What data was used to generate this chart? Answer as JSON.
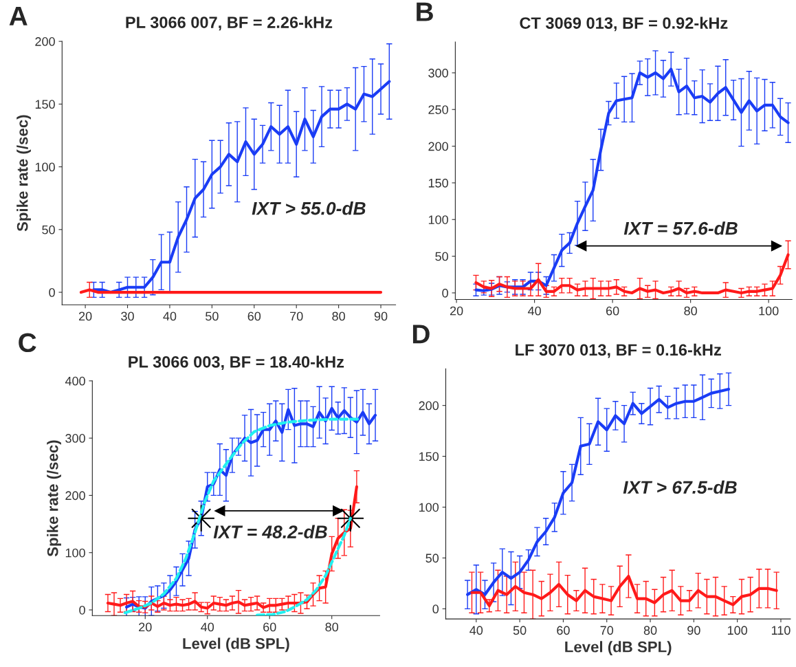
{
  "chart_data": [
    {
      "type": "line",
      "title": "PL 3066 007, BF = 2.26-kHz",
      "ylabel": "Spike rate (/sec)",
      "xlim": [
        14.5,
        93.5
      ],
      "ylim": [
        -10,
        200
      ],
      "xticks": [
        20,
        30,
        40,
        50,
        60,
        70,
        80,
        90
      ],
      "yticks": [
        0,
        50,
        100,
        150,
        200
      ],
      "annotations": [
        "A",
        "IXT > 55.0-dB"
      ],
      "series": [
        {
          "color": "#1a3cf5",
          "x": [
            22,
            24,
            26,
            28,
            30,
            32,
            34,
            36,
            38,
            40,
            42,
            44,
            46,
            48,
            50,
            52,
            54,
            56,
            58,
            60,
            62,
            64,
            66,
            68,
            70,
            72,
            74,
            76,
            78,
            80,
            82,
            84,
            86,
            88,
            90,
            92
          ],
          "values": [
            2,
            2,
            0,
            2,
            4,
            4,
            4,
            12,
            24,
            24,
            44,
            58,
            75,
            82,
            94,
            100,
            110,
            104,
            120,
            110,
            118,
            132,
            126,
            132,
            118,
            138,
            124,
            140,
            146,
            146,
            150,
            146,
            158,
            156,
            162,
            168
          ],
          "errors": [
            6,
            6,
            null,
            6,
            8,
            8,
            8,
            14,
            22,
            24,
            28,
            26,
            31,
            22,
            27,
            21,
            25,
            32,
            27,
            28,
            15,
            19,
            23,
            29,
            26,
            25,
            21,
            24,
            15,
            15,
            13,
            33,
            22,
            30,
            20,
            30
          ]
        },
        {
          "color": "#ff1a1a",
          "x": [
            19,
            21,
            23,
            90
          ],
          "values": [
            0,
            2,
            0,
            0
          ],
          "errors": [
            null,
            6,
            null,
            null
          ]
        }
      ]
    },
    {
      "type": "line",
      "title": "CT 3069 013, BF = 0.92-kHz",
      "xlim": [
        19.7,
        106
      ],
      "ylim": [
        -9,
        342
      ],
      "xticks": [
        20,
        40,
        60,
        80,
        100
      ],
      "yticks": [
        0,
        50,
        100,
        150,
        200,
        250,
        300
      ],
      "annotations": [
        "B",
        "IXT = 57.6-dB"
      ],
      "series": [
        {
          "color": "#1a3cf5",
          "x": [
            25,
            27,
            29,
            31,
            33,
            35,
            37,
            39,
            41,
            43,
            45,
            47,
            49,
            51,
            53,
            55,
            57,
            59,
            61,
            63,
            65,
            67,
            69,
            71,
            73,
            75,
            77,
            79,
            81,
            83,
            85,
            87,
            89,
            91,
            93,
            95,
            97,
            99,
            101,
            103,
            105
          ],
          "values": [
            4,
            3,
            5,
            10,
            8,
            8,
            8,
            16,
            16,
            10,
            34,
            58,
            68,
            95,
            118,
            140,
            195,
            245,
            262,
            264,
            266,
            300,
            294,
            300,
            292,
            305,
            274,
            282,
            266,
            268,
            260,
            272,
            280,
            263,
            246,
            262,
            248,
            256,
            256,
            240,
            232
          ],
          "errors": [
            8,
            6,
            8,
            12,
            7,
            10,
            10,
            12,
            12,
            12,
            18,
            22,
            14,
            30,
            33,
            42,
            28,
            16,
            24,
            31,
            33,
            16,
            25,
            30,
            25,
            23,
            31,
            38,
            23,
            36,
            25,
            37,
            38,
            27,
            46,
            40,
            45,
            35,
            31,
            25,
            27
          ]
        },
        {
          "color": "#ff1a1a",
          "x": [
            25,
            27,
            29,
            31,
            33,
            35,
            37,
            39,
            41,
            43,
            45,
            47,
            49,
            51,
            53,
            55,
            57,
            59,
            61,
            63,
            65,
            67,
            69,
            71,
            73,
            75,
            77,
            79,
            81,
            83,
            85,
            87,
            89,
            91,
            93,
            95,
            97,
            99,
            101,
            103,
            105
          ],
          "values": [
            14,
            8,
            6,
            12,
            8,
            6,
            6,
            6,
            18,
            2,
            2,
            10,
            10,
            4,
            6,
            6,
            6,
            6,
            8,
            2,
            0,
            6,
            2,
            4,
            0,
            2,
            6,
            0,
            2,
            0,
            0,
            0,
            4,
            2,
            0,
            2,
            2,
            4,
            6,
            24,
            52
          ],
          "errors": [
            10,
            8,
            11,
            10,
            14,
            10,
            10,
            10,
            22,
            8,
            6,
            10,
            10,
            8,
            10,
            14,
            10,
            10,
            10,
            6,
            null,
            14,
            8,
            12,
            null,
            6,
            10,
            6,
            6,
            null,
            null,
            null,
            10,
            null,
            6,
            6,
            6,
            8,
            10,
            12,
            19
          ]
        },
        {
          "type": "line",
          "color": "#000000",
          "marker": "triangle",
          "x": [
            52,
            102
          ],
          "values": [
            64,
            64
          ]
        }
      ]
    },
    {
      "type": "line",
      "title": "PL 3066 003, BF = 18.40-kHz",
      "xlabel": "Level (dB SPL)",
      "ylabel": "Spike rate (/sec)",
      "xlim": [
        3,
        95.4
      ],
      "ylim": [
        -10,
        400
      ],
      "xticks": [
        20,
        40,
        60,
        80
      ],
      "yticks": [
        0,
        100,
        200,
        300,
        400
      ],
      "annotations": [
        "C",
        "IXT = 48.2-dB"
      ],
      "series": [
        {
          "color": "#1a3cf5",
          "x": [
            14,
            16,
            18,
            20,
            22,
            24,
            26,
            28,
            30,
            32,
            34,
            36,
            38,
            40,
            42,
            44,
            46,
            48,
            50,
            52,
            54,
            56,
            58,
            60,
            62,
            64,
            66,
            68,
            70,
            72,
            74,
            76,
            78,
            80,
            82,
            84,
            86,
            88,
            90,
            92,
            94
          ],
          "values": [
            5,
            10,
            5,
            3,
            15,
            20,
            25,
            35,
            50,
            70,
            90,
            140,
            160,
            215,
            220,
            245,
            235,
            270,
            285,
            300,
            292,
            296,
            315,
            315,
            330,
            310,
            350,
            322,
            325,
            325,
            320,
            345,
            330,
            352,
            335,
            348,
            336,
            328,
            345,
            325,
            340
          ],
          "errors": [
            16,
            12,
            18,
            20,
            25,
            22,
            22,
            25,
            25,
            28,
            30,
            32,
            30,
            25,
            20,
            45,
            45,
            30,
            15,
            40,
            58,
            45,
            30,
            45,
            35,
            50,
            35,
            65,
            40,
            40,
            35,
            45,
            40,
            38,
            28,
            40,
            35,
            55,
            40,
            35,
            45
          ]
        },
        {
          "color": "#ff1a1a",
          "x": [
            8,
            10,
            12,
            14,
            16,
            18,
            20,
            22,
            24,
            26,
            28,
            30,
            32,
            34,
            36,
            38,
            40,
            42,
            44,
            46,
            48,
            50,
            52,
            54,
            56,
            58,
            60,
            62,
            64,
            66,
            68,
            70,
            72,
            74,
            76,
            78,
            80,
            82,
            84,
            86,
            88
          ],
          "values": [
            12,
            10,
            8,
            12,
            15,
            6,
            5,
            12,
            6,
            12,
            8,
            10,
            8,
            10,
            15,
            5,
            3,
            12,
            10,
            8,
            12,
            14,
            8,
            10,
            12,
            4,
            8,
            8,
            10,
            12,
            12,
            12,
            14,
            27,
            38,
            40,
            98,
            125,
            135,
            142,
            215
          ],
          "errors": [
            15,
            20,
            12,
            15,
            18,
            10,
            10,
            12,
            10,
            12,
            10,
            12,
            10,
            10,
            15,
            8,
            10,
            12,
            12,
            10,
            12,
            20,
            10,
            12,
            12,
            8,
            12,
            12,
            10,
            12,
            15,
            18,
            12,
            20,
            22,
            28,
            30,
            35,
            40,
            32,
            28
          ]
        },
        {
          "color": "#22f0f0",
          "line_style": "dashed",
          "x": [
            13.5,
            18,
            22,
            26,
            30,
            33,
            36,
            39,
            42,
            47,
            51,
            55,
            60,
            66,
            72,
            80,
            89
          ],
          "values": [
            -5,
            3,
            12,
            28,
            55,
            89,
            135,
            187,
            225,
            262,
            290,
            311,
            322,
            328,
            331,
            333,
            333
          ]
        },
        {
          "color": "#22f0f0",
          "line_style": "dashed",
          "x": [
            56,
            61,
            65,
            68,
            72,
            75,
            78,
            81,
            84,
            86
          ],
          "values": [
            -9,
            -8,
            -3,
            5,
            18,
            35,
            60,
            95,
            130,
            160
          ]
        },
        {
          "type": "scatter",
          "color": "#000000",
          "marker": "star",
          "x": [
            38,
            86
          ],
          "values": [
            160,
            160
          ]
        },
        {
          "type": "line",
          "color": "#000000",
          "marker": "triangle",
          "x": [
            44,
            82
          ],
          "values": [
            173,
            173
          ]
        }
      ]
    },
    {
      "type": "line",
      "title": "LF 3070 013, BF = 0.16-kHz",
      "xlabel": "Level (dB SPL)",
      "xlim": [
        33,
        112.2
      ],
      "ylim": [
        -10,
        236
      ],
      "xticks": [
        40,
        50,
        60,
        70,
        80,
        90,
        100,
        110
      ],
      "yticks": [
        0,
        50,
        100,
        150,
        200
      ],
      "annotations": [
        "D",
        "IXT > 67.5-dB"
      ],
      "series": [
        {
          "color": "#1a3cf5",
          "x": [
            38,
            40,
            42,
            44,
            46,
            48,
            50,
            52,
            54,
            56,
            58,
            60,
            62,
            64,
            66,
            68,
            70,
            72,
            74,
            76,
            78,
            80,
            82,
            84,
            86,
            88,
            90,
            92,
            94,
            96,
            98
          ],
          "values": [
            14,
            19,
            14,
            26,
            36,
            30,
            36,
            48,
            66,
            76,
            90,
            114,
            124,
            160,
            162,
            184,
            176,
            190,
            182,
            202,
            192,
            199,
            206,
            198,
            202,
            204,
            204,
            208,
            212,
            214,
            216
          ],
          "errors": [
            14,
            24,
            14,
            19,
            23,
            26,
            16,
            10,
            14,
            13,
            14,
            21,
            18,
            28,
            20,
            23,
            21,
            14,
            18,
            11,
            10,
            18,
            13,
            11,
            15,
            16,
            16,
            22,
            14,
            17,
            16
          ]
        },
        {
          "color": "#ff1a1a",
          "x": [
            39,
            41,
            43,
            45,
            47,
            49,
            51,
            53,
            55,
            57,
            59,
            61,
            63,
            65,
            67,
            69,
            71,
            73,
            75,
            77,
            79,
            81,
            83,
            85,
            87,
            89,
            91,
            93,
            95,
            97,
            99,
            101,
            103,
            105,
            107,
            109
          ],
          "values": [
            16,
            16,
            3,
            18,
            14,
            22,
            16,
            14,
            10,
            16,
            24,
            14,
            8,
            18,
            12,
            10,
            8,
            22,
            32,
            10,
            10,
            6,
            14,
            18,
            8,
            8,
            18,
            12,
            12,
            8,
            4,
            12,
            14,
            20,
            20,
            18
          ],
          "errors": [
            20,
            20,
            6,
            20,
            18,
            24,
            20,
            24,
            17,
            18,
            22,
            19,
            10,
            22,
            17,
            14,
            14,
            20,
            21,
            14,
            17,
            13,
            17,
            20,
            14,
            10,
            17,
            17,
            19,
            14,
            8,
            17,
            17,
            19,
            19,
            18
          ]
        }
      ]
    }
  ]
}
